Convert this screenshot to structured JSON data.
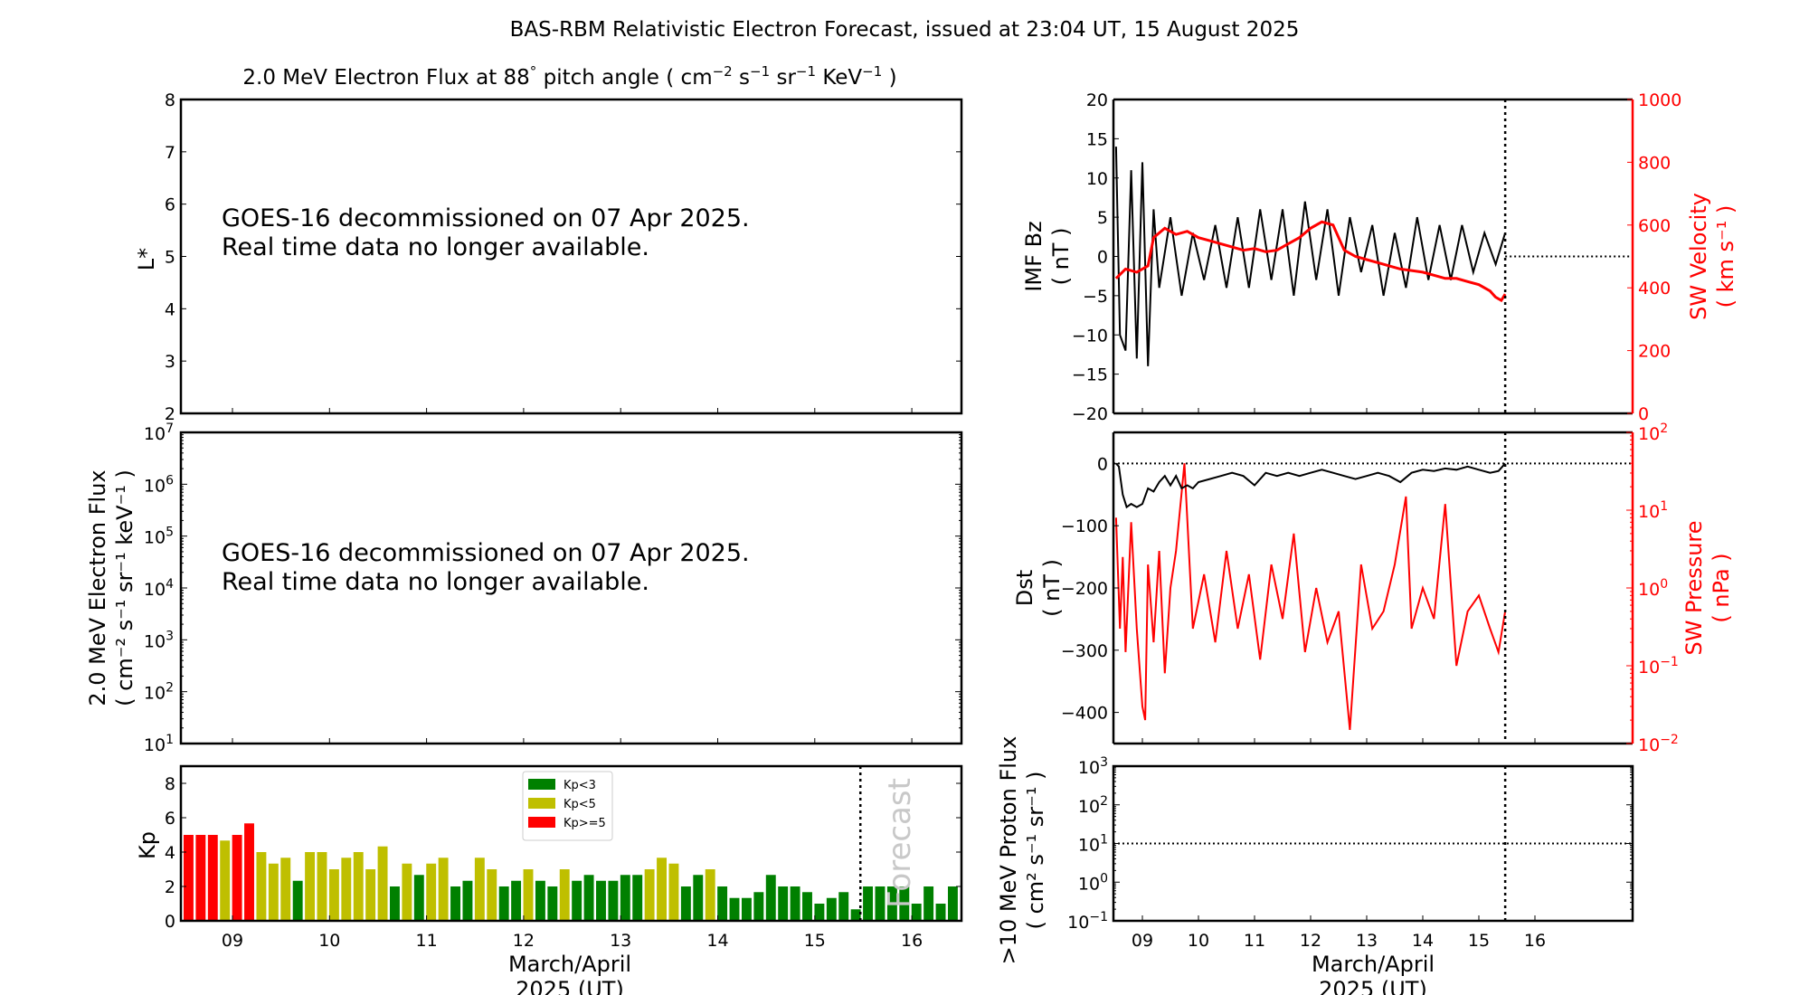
{
  "title": "BAS-RBM Relativistic Electron Forecast, issued at 23:04 UT, 15 August 2025",
  "colors": {
    "kp_low": "#008000",
    "kp_mid": "#bfbf00",
    "kp_high": "#ff0000",
    "secondary_axis": "#ff0000",
    "primary_line": "#000000",
    "forecast_text": "#c8c8c8"
  },
  "chart_data": [
    {
      "id": "lstar-panel",
      "type": "heatmap",
      "title": "2.0 MeV Electron Flux at 88° pitch angle ( cm⁻² s⁻¹ sr⁻¹ KeV⁻¹ )",
      "title_parts": [
        "2.0 MeV Electron Flux at 88",
        "°",
        " pitch angle ( cm",
        "−2",
        " s",
        "−1",
        " sr",
        "−1",
        " KeV",
        "−1",
        " )"
      ],
      "ylabel": "L*",
      "ylim": [
        2,
        8
      ],
      "yticks": [
        "2",
        "3",
        "4",
        "5",
        "6",
        "7",
        "8"
      ],
      "message": [
        "GOES-16 decommissioned on 07 Apr 2025.",
        "Real time data no longer available."
      ]
    },
    {
      "id": "electron-flux-panel",
      "type": "line",
      "ylabel": [
        "2.0 MeV Electron Flux",
        "( cm⁻² s⁻¹ sr⁻¹ keV⁻¹ )"
      ],
      "yscale": "log",
      "ylim": [
        10,
        10000000
      ],
      "yticks": [
        {
          "base": "10",
          "exp": "1"
        },
        {
          "base": "10",
          "exp": "2"
        },
        {
          "base": "10",
          "exp": "3"
        },
        {
          "base": "10",
          "exp": "4"
        },
        {
          "base": "10",
          "exp": "5"
        },
        {
          "base": "10",
          "exp": "6"
        },
        {
          "base": "10",
          "exp": "7"
        }
      ],
      "message": [
        "GOES-16 decommissioned on 07 Apr 2025.",
        "Real time data no longer available."
      ]
    },
    {
      "id": "kp-panel",
      "type": "bar",
      "ylabel": "Kp",
      "ylim": [
        0,
        9
      ],
      "yticks": [
        "0",
        "2",
        "4",
        "6",
        "8"
      ],
      "xlabel": [
        "March/April",
        "2025 (UT)"
      ],
      "xticks": [
        "09",
        "10",
        "11",
        "12",
        "13",
        "14",
        "15",
        "16"
      ],
      "x_start_day": 8.53,
      "x_end_day": 16.47,
      "bars_per_day": 8,
      "forecast_start_day": 15.47,
      "forecast_label": "Forecast",
      "legend": [
        {
          "label": "Kp<3",
          "color": "#008000"
        },
        {
          "label": "Kp<5",
          "color": "#bfbf00"
        },
        {
          "label": "Kp>=5",
          "color": "#ff0000"
        }
      ],
      "legend_position": "top-center",
      "values": [
        5.0,
        5.0,
        5.0,
        4.67,
        5.0,
        5.67,
        4.0,
        3.33,
        3.67,
        2.33,
        4.0,
        4.0,
        3.0,
        3.67,
        4.0,
        3.0,
        4.33,
        2.0,
        3.33,
        2.67,
        3.33,
        3.67,
        2.0,
        2.33,
        3.67,
        3.0,
        2.0,
        2.33,
        3.0,
        2.33,
        2.0,
        3.0,
        2.33,
        2.67,
        2.33,
        2.33,
        2.67,
        2.67,
        3.0,
        3.67,
        3.33,
        2.0,
        2.67,
        3.0,
        2.0,
        1.33,
        1.33,
        1.67,
        2.67,
        2.0,
        2.0,
        1.67,
        1.0,
        1.33,
        1.67,
        0.67,
        2.0,
        2.0,
        2.0,
        2.0,
        1.0,
        2.0,
        1.0,
        2.0
      ]
    },
    {
      "id": "imf-panel",
      "type": "line",
      "ylabel": [
        "IMF Bz",
        "( nT )"
      ],
      "ylim": [
        -20,
        20
      ],
      "yticks": [
        "−20",
        "−15",
        "−10",
        "−5",
        "0",
        "5",
        "10",
        "15",
        "20"
      ],
      "y2label": [
        "SW Velocity",
        "( km s⁻¹ )"
      ],
      "y2lim": [
        0,
        1000
      ],
      "y2ticks": [
        "0",
        "200",
        "400",
        "600",
        "800",
        "1000"
      ],
      "reference_line": 0,
      "series": [
        {
          "name": "IMF Bz",
          "color": "#000000",
          "axis": "left",
          "x": [
            8.53,
            8.6,
            8.7,
            8.8,
            8.9,
            9.0,
            9.1,
            9.2,
            9.3,
            9.5,
            9.7,
            9.9,
            10.1,
            10.3,
            10.5,
            10.7,
            10.9,
            11.1,
            11.3,
            11.5,
            11.7,
            11.9,
            12.1,
            12.3,
            12.5,
            12.7,
            12.9,
            13.1,
            13.3,
            13.5,
            13.7,
            13.9,
            14.1,
            14.3,
            14.5,
            14.7,
            14.9,
            15.1,
            15.3,
            15.47
          ],
          "y": [
            14,
            -10,
            -12,
            11,
            -13,
            12,
            -14,
            6,
            -4,
            5,
            -5,
            3,
            -3,
            4,
            -4,
            5,
            -4,
            6,
            -3,
            6,
            -5,
            7,
            -3,
            6,
            -5,
            5,
            -2,
            4,
            -5,
            3,
            -4,
            5,
            -3,
            4,
            -3,
            4,
            -2,
            3,
            -1,
            3
          ]
        },
        {
          "name": "SW Velocity",
          "color": "#ff0000",
          "axis": "right",
          "x": [
            8.53,
            8.7,
            8.9,
            9.1,
            9.2,
            9.4,
            9.6,
            9.8,
            10.0,
            10.2,
            10.4,
            10.6,
            10.8,
            11.0,
            11.2,
            11.4,
            11.6,
            11.8,
            12.0,
            12.2,
            12.4,
            12.6,
            12.8,
            13.0,
            13.2,
            13.4,
            13.6,
            13.8,
            14.0,
            14.2,
            14.4,
            14.6,
            14.8,
            15.0,
            15.2,
            15.3,
            15.4,
            15.47
          ],
          "y": [
            430,
            460,
            450,
            470,
            560,
            590,
            570,
            580,
            560,
            550,
            540,
            530,
            520,
            525,
            515,
            520,
            540,
            560,
            590,
            610,
            600,
            520,
            500,
            490,
            480,
            470,
            460,
            455,
            450,
            440,
            430,
            430,
            420,
            410,
            390,
            370,
            360,
            380
          ]
        }
      ]
    },
    {
      "id": "dst-panel",
      "type": "line",
      "ylabel": [
        "Dst",
        "( nT )"
      ],
      "ylim": [
        -450,
        50
      ],
      "yticks": [
        "−400",
        "−300",
        "−200",
        "−100",
        "0"
      ],
      "y2label": [
        "SW Pressure",
        "( nPa )"
      ],
      "y2scale": "log",
      "y2lim": [
        0.01,
        100
      ],
      "y2ticks": [
        {
          "base": "10",
          "exp": "−2"
        },
        {
          "base": "10",
          "exp": "−1"
        },
        {
          "base": "10",
          "exp": "0"
        },
        {
          "base": "10",
          "exp": "1"
        },
        {
          "base": "10",
          "exp": "2"
        }
      ],
      "reference_line": 0,
      "series": [
        {
          "name": "Dst",
          "color": "#000000",
          "axis": "left",
          "x": [
            8.53,
            8.58,
            8.65,
            8.72,
            8.8,
            8.9,
            9.0,
            9.1,
            9.2,
            9.3,
            9.4,
            9.5,
            9.6,
            9.7,
            9.8,
            9.9,
            10.0,
            10.2,
            10.4,
            10.6,
            10.8,
            11.0,
            11.2,
            11.4,
            11.6,
            11.8,
            12.0,
            12.2,
            12.4,
            12.6,
            12.8,
            13.0,
            13.2,
            13.4,
            13.6,
            13.8,
            14.0,
            14.2,
            14.4,
            14.6,
            14.8,
            15.0,
            15.2,
            15.35,
            15.47
          ],
          "y": [
            0,
            -5,
            -50,
            -70,
            -65,
            -70,
            -65,
            -40,
            -45,
            -30,
            -20,
            -35,
            -20,
            -40,
            -35,
            -40,
            -30,
            -25,
            -20,
            -15,
            -20,
            -35,
            -15,
            -20,
            -15,
            -20,
            -15,
            -10,
            -15,
            -20,
            -25,
            -20,
            -15,
            -20,
            -30,
            -15,
            -10,
            -12,
            -8,
            -10,
            -5,
            -10,
            -15,
            -12,
            0
          ]
        },
        {
          "name": "SW Pressure",
          "color": "#ff0000",
          "axis": "right",
          "x": [
            8.53,
            8.6,
            8.65,
            8.7,
            8.8,
            8.9,
            9.0,
            9.05,
            9.1,
            9.2,
            9.3,
            9.4,
            9.5,
            9.6,
            9.75,
            9.9,
            10.1,
            10.3,
            10.5,
            10.7,
            10.9,
            11.1,
            11.3,
            11.5,
            11.7,
            11.9,
            12.1,
            12.3,
            12.5,
            12.7,
            12.9,
            13.1,
            13.3,
            13.5,
            13.7,
            13.8,
            14.0,
            14.2,
            14.4,
            14.6,
            14.8,
            15.0,
            15.2,
            15.35,
            15.47
          ],
          "y": [
            8,
            0.3,
            2.5,
            0.15,
            7,
            0.3,
            0.03,
            0.02,
            2,
            0.2,
            3,
            0.08,
            1,
            3,
            40,
            0.3,
            1.5,
            0.2,
            3,
            0.3,
            1.5,
            0.12,
            2,
            0.4,
            5,
            0.15,
            1,
            0.2,
            0.5,
            0.015,
            2,
            0.3,
            0.5,
            2,
            15,
            0.3,
            1,
            0.4,
            12,
            0.1,
            0.5,
            0.8,
            0.3,
            0.15,
            0.5
          ]
        }
      ]
    },
    {
      "id": "proton-panel",
      "type": "line",
      "ylabel": [
        ">10 MeV Proton Flux",
        "( cm² s⁻¹ sr⁻¹ )"
      ],
      "yscale": "log",
      "ylim": [
        0.1,
        1000
      ],
      "yticks": [
        {
          "base": "10",
          "exp": "−1"
        },
        {
          "base": "10",
          "exp": "0"
        },
        {
          "base": "10",
          "exp": "1"
        },
        {
          "base": "10",
          "exp": "2"
        },
        {
          "base": "10",
          "exp": "3"
        }
      ],
      "reference_line": 10,
      "xlabel": [
        "March/April",
        "2025 (UT)"
      ],
      "xticks": [
        "09",
        "10",
        "11",
        "12",
        "13",
        "14",
        "15",
        "16"
      ],
      "x_start_day": 8.47,
      "x_end_day": 16.47,
      "forecast_start_day": 15.47,
      "series": []
    }
  ]
}
